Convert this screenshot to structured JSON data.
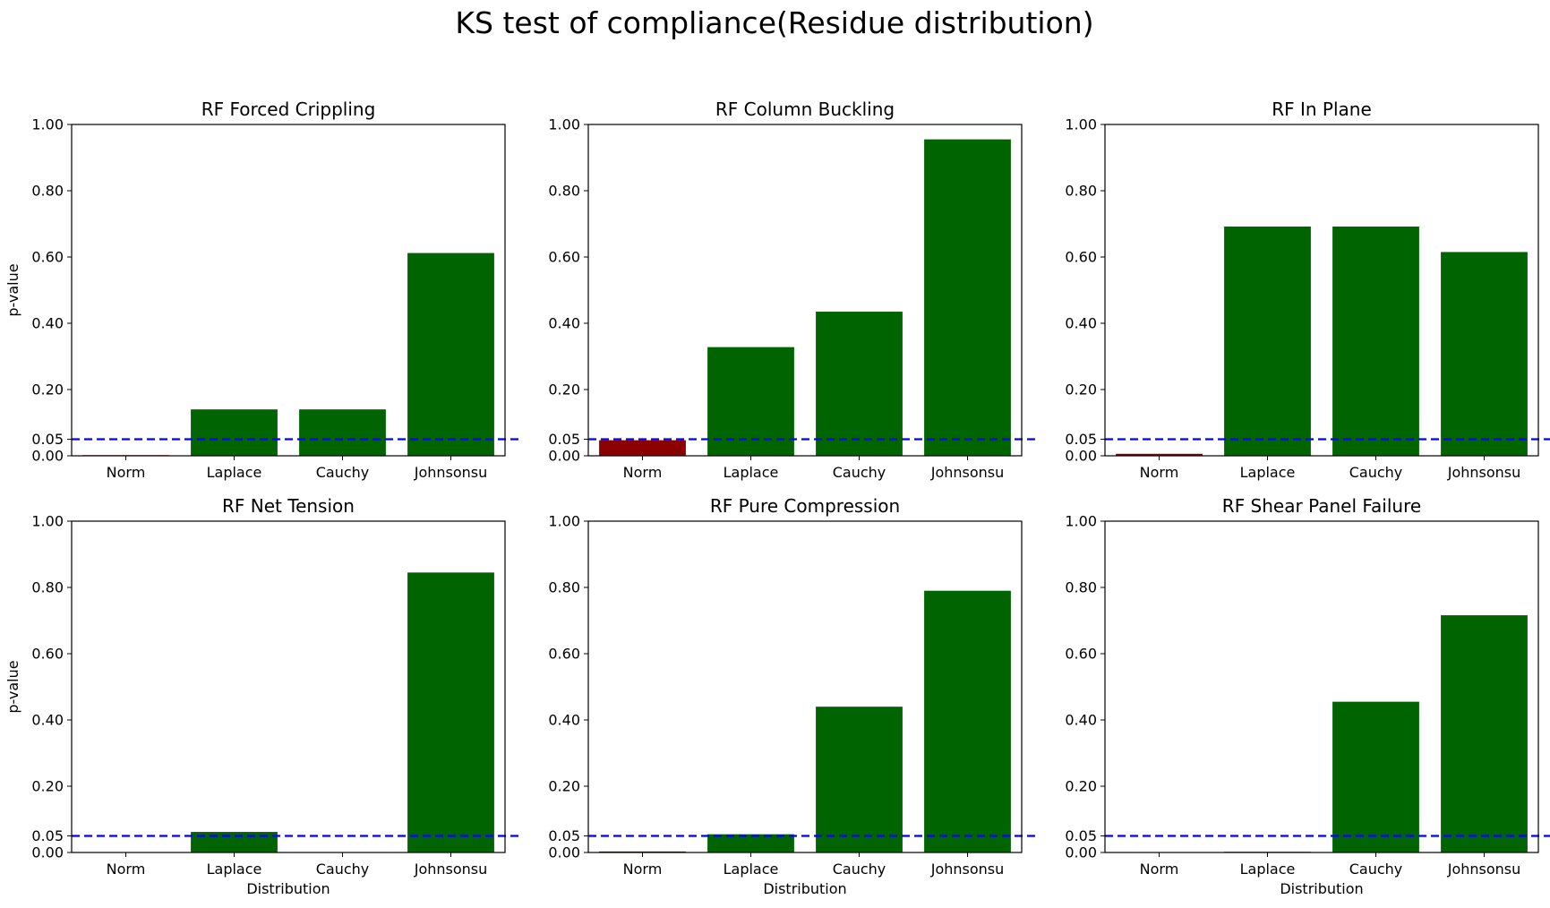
{
  "figure": {
    "title": "KS test of compliance(Residue distribution)"
  },
  "colors": {
    "pass": "#006400",
    "fail": "#8B0000",
    "threshold": "#0000FF",
    "axis": "#000000"
  },
  "chart_data": [
    {
      "type": "bar",
      "title": "RF Forced Crippling",
      "categories": [
        "Norm",
        "Laplace",
        "Cauchy",
        "Johnsonsu"
      ],
      "values": [
        0.002,
        0.14,
        0.14,
        0.612
      ],
      "ylabel": "p-value",
      "xlabel": "",
      "ylim": [
        0,
        1
      ],
      "yticks": [
        "0.00",
        "0.05",
        "0.20",
        "0.40",
        "0.60",
        "0.80",
        "1.00"
      ],
      "threshold": 0.05
    },
    {
      "type": "bar",
      "title": "RF Column Buckling",
      "categories": [
        "Norm",
        "Laplace",
        "Cauchy",
        "Johnsonsu"
      ],
      "values": [
        0.047,
        0.328,
        0.435,
        0.955
      ],
      "ylabel": "",
      "xlabel": "",
      "ylim": [
        0,
        1
      ],
      "yticks": [
        "0.00",
        "0.05",
        "0.20",
        "0.40",
        "0.60",
        "0.80",
        "1.00"
      ],
      "threshold": 0.05
    },
    {
      "type": "bar",
      "title": "RF In Plane",
      "categories": [
        "Norm",
        "Laplace",
        "Cauchy",
        "Johnsonsu"
      ],
      "values": [
        0.006,
        0.692,
        0.692,
        0.615
      ],
      "ylabel": "",
      "xlabel": "",
      "ylim": [
        0,
        1
      ],
      "yticks": [
        "0.00",
        "0.05",
        "0.20",
        "0.40",
        "0.60",
        "0.80",
        "1.00"
      ],
      "threshold": 0.05
    },
    {
      "type": "bar",
      "title": "RF Net Tension",
      "categories": [
        "Norm",
        "Laplace",
        "Cauchy",
        "Johnsonsu"
      ],
      "values": [
        0.0,
        0.062,
        0.0,
        0.845
      ],
      "ylabel": "p-value",
      "xlabel": "Distribution",
      "ylim": [
        0,
        1
      ],
      "yticks": [
        "0.00",
        "0.05",
        "0.20",
        "0.40",
        "0.60",
        "0.80",
        "1.00"
      ],
      "threshold": 0.05
    },
    {
      "type": "bar",
      "title": "RF Pure Compression",
      "categories": [
        "Norm",
        "Laplace",
        "Cauchy",
        "Johnsonsu"
      ],
      "values": [
        0.003,
        0.055,
        0.44,
        0.79
      ],
      "ylabel": "",
      "xlabel": "Distribution",
      "ylim": [
        0,
        1
      ],
      "yticks": [
        "0.00",
        "0.05",
        "0.20",
        "0.40",
        "0.60",
        "0.80",
        "1.00"
      ],
      "threshold": 0.05
    },
    {
      "type": "bar",
      "title": "RF Shear Panel Failure",
      "categories": [
        "Norm",
        "Laplace",
        "Cauchy",
        "Johnsonsu"
      ],
      "values": [
        0.0,
        0.002,
        0.455,
        0.716
      ],
      "ylabel": "",
      "xlabel": "Distribution",
      "ylim": [
        0,
        1
      ],
      "yticks": [
        "0.00",
        "0.05",
        "0.20",
        "0.40",
        "0.60",
        "0.80",
        "1.00"
      ],
      "threshold": 0.05
    }
  ]
}
